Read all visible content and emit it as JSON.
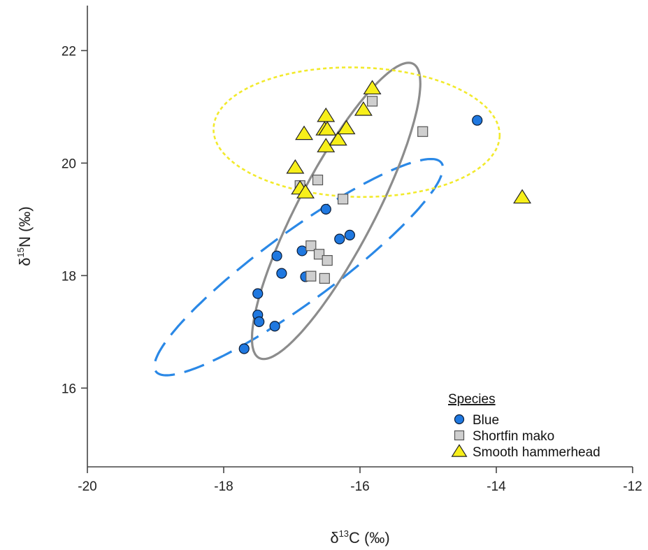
{
  "chart_data": {
    "type": "scatter",
    "xlabel": {
      "prefix": "δ",
      "sup": "13",
      "suffix": "C (‰)"
    },
    "ylabel": {
      "prefix": "δ",
      "sup": "15",
      "suffix": "N (‰)"
    },
    "xlim": [
      -20,
      -12
    ],
    "ylim": [
      14.6,
      22.8
    ],
    "x_ticks": [
      -20,
      -18,
      -16,
      -14,
      -12
    ],
    "y_ticks": [
      16,
      18,
      20,
      22
    ],
    "grid": false,
    "legend": {
      "title": "Species",
      "placement": "bottom-right"
    },
    "series": [
      {
        "name": "Blue",
        "marker": "circle",
        "color": "#1f78e0",
        "points": [
          [
            -17.7,
            16.7
          ],
          [
            -17.5,
            17.68
          ],
          [
            -17.5,
            17.3
          ],
          [
            -17.48,
            17.18
          ],
          [
            -17.25,
            17.1
          ],
          [
            -17.22,
            18.35
          ],
          [
            -17.15,
            18.04
          ],
          [
            -16.85,
            18.44
          ],
          [
            -16.8,
            17.98
          ],
          [
            -16.5,
            19.18
          ],
          [
            -16.3,
            18.65
          ],
          [
            -16.15,
            18.72
          ],
          [
            -14.28,
            20.76
          ]
        ],
        "ellipse": {
          "cx": -16.9,
          "cy": 18.15,
          "rx": 2.8,
          "ry": 0.58,
          "angle": 42,
          "dash": "long"
        }
      },
      {
        "name": "Shortfin mako",
        "marker": "square",
        "color": "#cfcfcf",
        "points": [
          [
            -16.88,
            19.6
          ],
          [
            -16.62,
            19.7
          ],
          [
            -16.72,
            18.53
          ],
          [
            -16.6,
            18.38
          ],
          [
            -16.48,
            18.27
          ],
          [
            -16.72,
            17.99
          ],
          [
            -16.52,
            17.95
          ],
          [
            -16.25,
            19.36
          ],
          [
            -15.82,
            21.1
          ],
          [
            -15.08,
            20.56
          ]
        ],
        "ellipse": {
          "cx": -16.35,
          "cy": 19.15,
          "rx": 2.85,
          "ry": 0.58,
          "angle": 67,
          "dash": "solid"
        }
      },
      {
        "name": "Smooth hammerhead",
        "marker": "triangle",
        "color": "#f7ef1a",
        "points": [
          [
            -16.82,
            20.52
          ],
          [
            -16.95,
            19.92
          ],
          [
            -16.88,
            19.55
          ],
          [
            -16.8,
            19.48
          ],
          [
            -16.5,
            20.84
          ],
          [
            -16.52,
            20.6
          ],
          [
            -16.48,
            20.6
          ],
          [
            -16.5,
            20.3
          ],
          [
            -16.32,
            20.42
          ],
          [
            -16.2,
            20.62
          ],
          [
            -15.95,
            20.95
          ],
          [
            -15.82,
            21.33
          ],
          [
            -13.62,
            19.39
          ]
        ],
        "ellipse": {
          "cx": -16.05,
          "cy": 20.55,
          "rx": 2.1,
          "ry": 1.15,
          "angle": -2,
          "dash": "dotted"
        }
      }
    ]
  }
}
